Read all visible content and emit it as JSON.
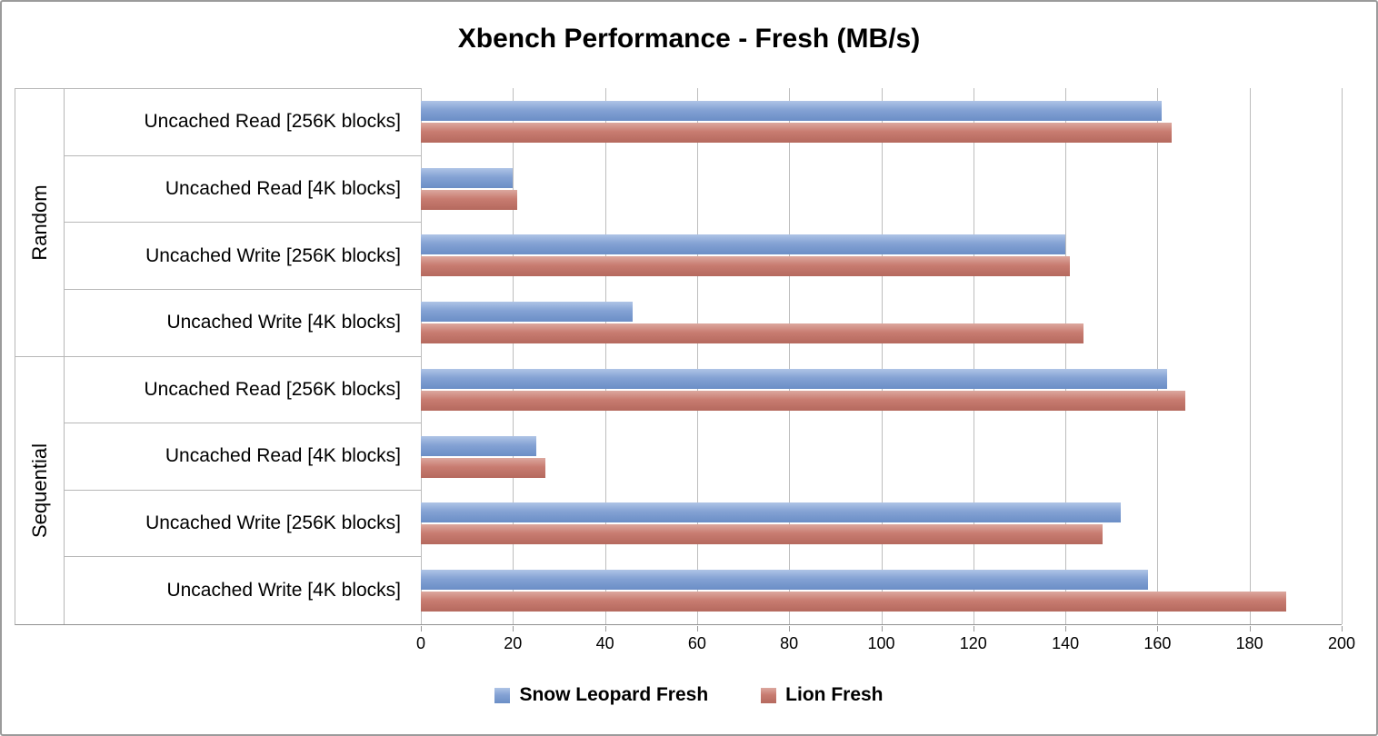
{
  "chart_data": {
    "type": "bar",
    "orientation": "horizontal",
    "title": "Xbench Performance - Fresh (MB/s)",
    "value_unit": "MB/s",
    "grid": true,
    "legend_position": "bottom",
    "x_axis": {
      "min": 0,
      "max": 200,
      "tick_step": 20,
      "ticks": [
        0,
        20,
        40,
        60,
        80,
        100,
        120,
        140,
        160,
        180,
        200
      ]
    },
    "groups": [
      {
        "label": "Random",
        "categories": [
          "Uncached Read [256K blocks]",
          "Uncached Read [4K blocks]",
          "Uncached Write [256K blocks]",
          "Uncached Write [4K blocks]"
        ]
      },
      {
        "label": "Sequential",
        "categories": [
          "Uncached Read [256K blocks]",
          "Uncached Read [4K blocks]",
          "Uncached Write [256K blocks]",
          "Uncached Write [4K blocks]"
        ]
      }
    ],
    "series": [
      {
        "name": "Snow Leopard Fresh",
        "color": "#84A2D4",
        "gradient": [
          "#AFC4E6",
          "#84A2D4",
          "#6B8EC6"
        ],
        "values": [
          161,
          20,
          140,
          46,
          162,
          25,
          152,
          158
        ]
      },
      {
        "name": "Lion Fresh",
        "color": "#C87C71",
        "gradient": [
          "#DCA89F",
          "#C87C71",
          "#B5695E"
        ],
        "values": [
          163,
          21,
          141,
          144,
          166,
          27,
          148,
          188
        ]
      }
    ]
  }
}
